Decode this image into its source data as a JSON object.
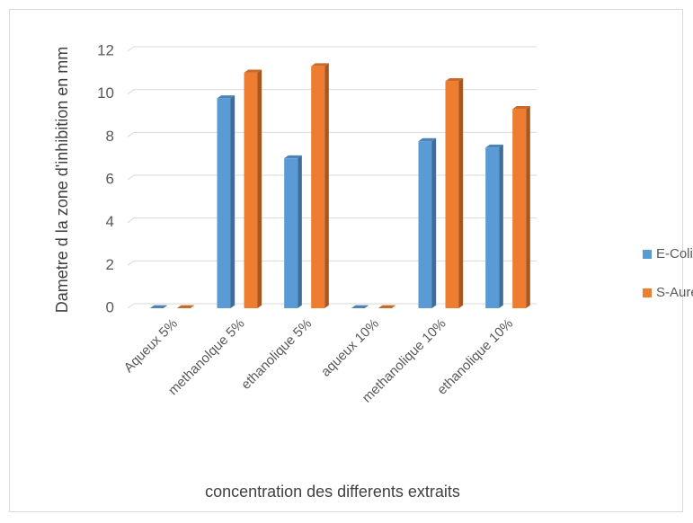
{
  "chart_data": {
    "type": "bar",
    "categories": [
      "Aqueux 5%",
      "methanolque 5%",
      "ethanolique 5%",
      "aqueux 10%",
      "methanolique 10%",
      "ethanolique 10%"
    ],
    "series": [
      {
        "name": "E-Coli",
        "color": "#5b9bd5",
        "values": [
          0,
          9.8,
          7,
          0,
          7.8,
          7.5
        ]
      },
      {
        "name": "S-Aureus",
        "color": "#ed7d31",
        "values": [
          0,
          11,
          11.3,
          0,
          10.6,
          9.3
        ]
      }
    ],
    "ylim": [
      0,
      12
    ],
    "yticks": [
      0,
      2,
      4,
      6,
      8,
      10,
      12
    ],
    "grid": true,
    "legend": "right",
    "ylabel": "Dametre d la zone d'inhibition  en mm",
    "xlabel": "concentration des differents extraits"
  }
}
